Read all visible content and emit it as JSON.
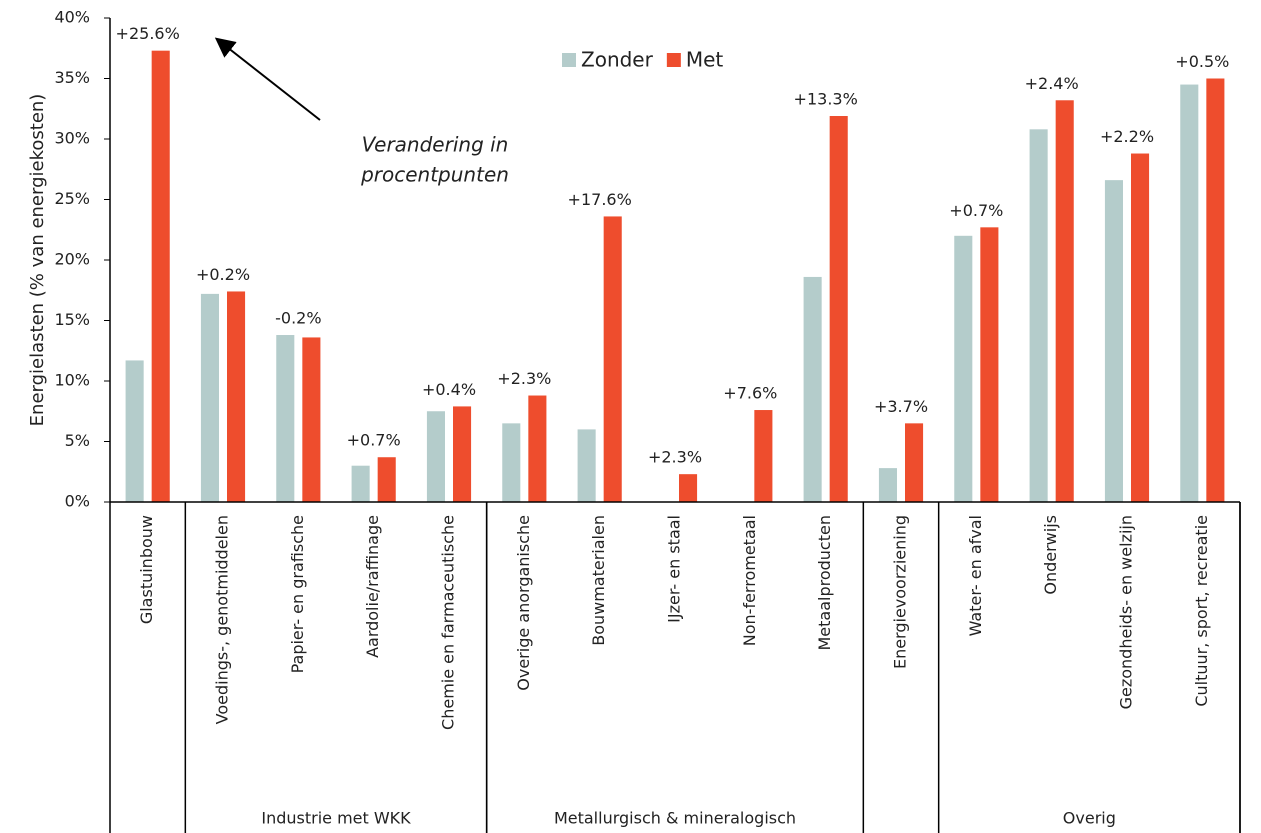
{
  "chart_data": {
    "type": "bar",
    "y_axis_label": "Energielasten (% van energiekosten)",
    "categories": [
      "Glastuinbouw",
      "Voedings-, genotmiddelen",
      "Papier- en grafische",
      "Aardolie/raffinage",
      "Chemie en farmaceutische",
      "Overige anorganische",
      "Bouwmaterialen",
      "IJzer- en staal",
      "Non-ferrometaal",
      "Metaalproducten",
      "Energievoorziening",
      "Water- en afval",
      "Onderwijs",
      "Gezondheids- en welzijn",
      "Cultuur, sport, recreatie"
    ],
    "series": [
      {
        "name": "Zonder",
        "color": "#b4cccb",
        "values": [
          11.7,
          17.2,
          13.8,
          3.0,
          7.5,
          6.5,
          6.0,
          0,
          0,
          18.6,
          2.8,
          22.0,
          30.8,
          26.6,
          34.5
        ]
      },
      {
        "name": "Met",
        "color": "#ee4d2d",
        "values": [
          37.3,
          17.4,
          13.6,
          3.7,
          7.9,
          8.8,
          23.6,
          2.3,
          7.6,
          31.9,
          6.5,
          22.7,
          33.2,
          28.8,
          35.0
        ]
      }
    ],
    "change_labels": [
      "+25.6%",
      "+0.2%",
      "-0.2%",
      "+0.7%",
      "+0.4%",
      "+2.3%",
      "+17.6%",
      "+2.3%",
      "+7.6%",
      "+13.3%",
      "+3.7%",
      "+0.7%",
      "+2.4%",
      "+2.2%",
      "+0.5%"
    ],
    "groups": [
      {
        "name": "Industrie met WKK",
        "start": 1,
        "end": 4
      },
      {
        "name": "Metallurgisch & mineralogisch",
        "start": 5,
        "end": 9
      },
      {
        "name": "Overig",
        "start": 11,
        "end": 14
      }
    ],
    "annotation": [
      "Verandering in",
      "procentpunten"
    ],
    "ylim": [
      0,
      40
    ],
    "yticks": [
      {
        "value": 0,
        "label": "0%"
      },
      {
        "value": 5,
        "label": "5%"
      },
      {
        "value": 10,
        "label": "10%"
      },
      {
        "value": 15,
        "label": "15%"
      },
      {
        "value": 20,
        "label": "20%"
      },
      {
        "value": 25,
        "label": "25%"
      },
      {
        "value": 30,
        "label": "30%"
      },
      {
        "value": 35,
        "label": "35%"
      },
      {
        "value": 40,
        "label": "40%"
      }
    ]
  }
}
